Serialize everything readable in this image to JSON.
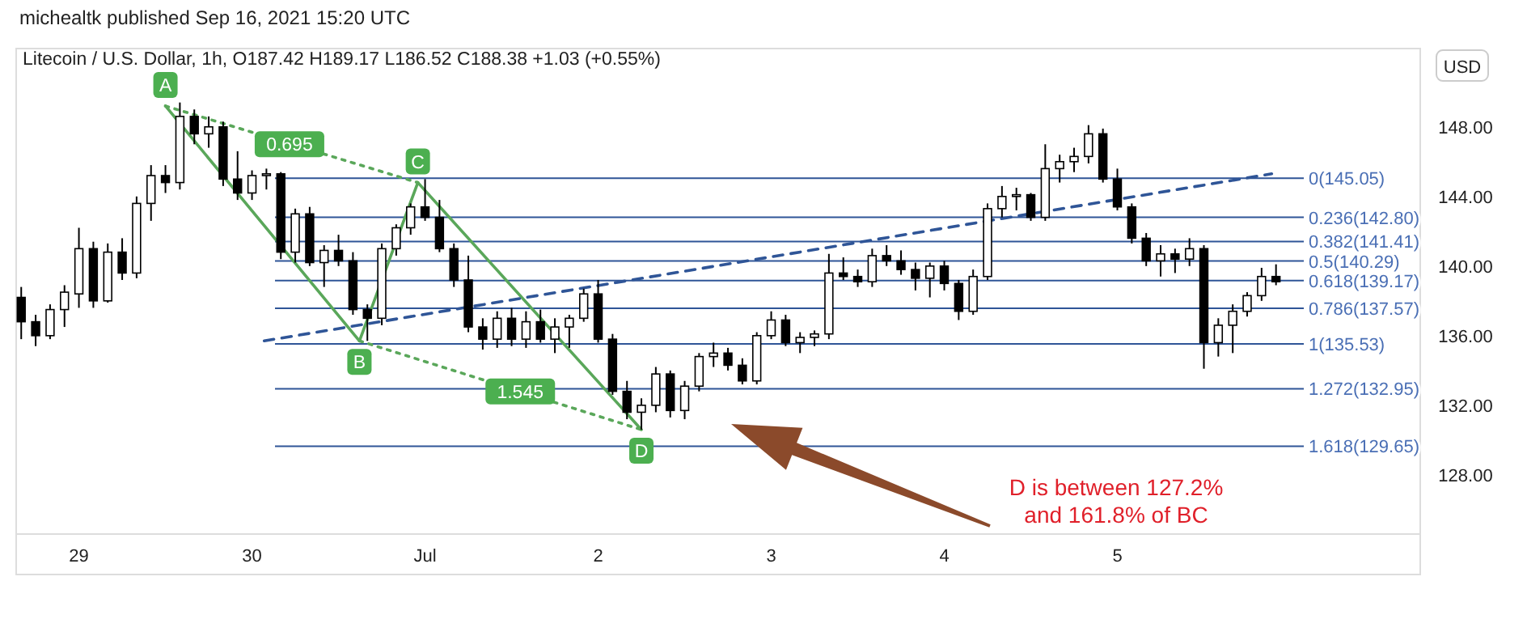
{
  "chart_data": {
    "type": "candlestick",
    "subtitle": "michealtk published Sep 16, 2021 15:20 UTC",
    "title": "Litecoin / U.S. Dollar, 1h, O187.42 H189.17 L186.52 C188.38 +1.03 (+0.55%)",
    "ylabel": "USD",
    "x": [
      "2021-06-28T16:00",
      "2021-06-28T18:00",
      "2021-06-28T20:00",
      "2021-06-28T22:00",
      "2021-06-29T00:00",
      "2021-06-29T02:00",
      "2021-06-29T04:00",
      "2021-06-29T06:00",
      "2021-06-29T08:00",
      "2021-06-29T10:00",
      "2021-06-29T12:00",
      "2021-06-29T14:00",
      "2021-06-29T16:00",
      "2021-06-29T18:00",
      "2021-06-29T20:00",
      "2021-06-29T22:00",
      "2021-06-30T00:00",
      "2021-06-30T02:00",
      "2021-06-30T04:00",
      "2021-06-30T06:00",
      "2021-06-30T08:00",
      "2021-06-30T10:00",
      "2021-06-30T12:00",
      "2021-06-30T14:00",
      "2021-06-30T16:00",
      "2021-06-30T18:00",
      "2021-06-30T20:00",
      "2021-06-30T22:00",
      "2021-07-01T00:00",
      "2021-07-01T02:00",
      "2021-07-01T04:00",
      "2021-07-01T06:00",
      "2021-07-01T08:00",
      "2021-07-01T10:00",
      "2021-07-01T12:00",
      "2021-07-01T14:00",
      "2021-07-01T16:00",
      "2021-07-01T18:00",
      "2021-07-01T20:00",
      "2021-07-01T22:00",
      "2021-07-02T00:00",
      "2021-07-02T02:00",
      "2021-07-02T04:00",
      "2021-07-02T06:00",
      "2021-07-02T08:00",
      "2021-07-02T10:00",
      "2021-07-02T12:00",
      "2021-07-02T14:00",
      "2021-07-02T16:00",
      "2021-07-02T18:00",
      "2021-07-02T20:00",
      "2021-07-02T22:00",
      "2021-07-03T00:00",
      "2021-07-03T02:00",
      "2021-07-03T04:00",
      "2021-07-03T06:00",
      "2021-07-03T08:00",
      "2021-07-03T10:00",
      "2021-07-03T12:00",
      "2021-07-03T14:00",
      "2021-07-03T16:00",
      "2021-07-03T18:00",
      "2021-07-03T20:00",
      "2021-07-03T22:00",
      "2021-07-04T00:00",
      "2021-07-04T02:00",
      "2021-07-04T04:00",
      "2021-07-04T06:00",
      "2021-07-04T08:00",
      "2021-07-04T10:00",
      "2021-07-04T12:00",
      "2021-07-04T14:00",
      "2021-07-04T16:00",
      "2021-07-04T18:00",
      "2021-07-04T20:00",
      "2021-07-04T22:00",
      "2021-07-05T00:00",
      "2021-07-05T02:00",
      "2021-07-05T04:00",
      "2021-07-05T06:00",
      "2021-07-05T08:00",
      "2021-07-05T10:00",
      "2021-07-05T12:00",
      "2021-07-05T14:00",
      "2021-07-05T16:00",
      "2021-07-05T18:00",
      "2021-07-05T20:00",
      "2021-07-05T22:00"
    ],
    "ohlc": [
      [
        138.2,
        138.8,
        135.8,
        136.8
      ],
      [
        136.8,
        137.2,
        135.4,
        136
      ],
      [
        136,
        137.8,
        135.8,
        137.5
      ],
      [
        137.5,
        138.9,
        136.5,
        138.5
      ],
      [
        138.4,
        142.2,
        137.6,
        141
      ],
      [
        141,
        141.4,
        137.6,
        138
      ],
      [
        138,
        141.3,
        137.9,
        140.8
      ],
      [
        140.8,
        141.6,
        139.2,
        139.6
      ],
      [
        139.6,
        144,
        139.3,
        143.6
      ],
      [
        143.6,
        145.8,
        142.6,
        145.2
      ],
      [
        145.2,
        145.8,
        144.2,
        144.8
      ],
      [
        144.8,
        149.4,
        144.4,
        148.6
      ],
      [
        148.6,
        149,
        147,
        147.6
      ],
      [
        147.6,
        148.6,
        146.8,
        148
      ],
      [
        148,
        148.3,
        144.6,
        145
      ],
      [
        145,
        146.6,
        143.8,
        144.2
      ],
      [
        144.2,
        145.5,
        143.8,
        145.2
      ],
      [
        145.2,
        145.6,
        144.4,
        145.3
      ],
      [
        145.3,
        145.4,
        140.4,
        140.8
      ],
      [
        140.8,
        143.3,
        140.2,
        143
      ],
      [
        143,
        143.4,
        140,
        140.2
      ],
      [
        140.2,
        141.2,
        138.8,
        140.9
      ],
      [
        140.9,
        141.8,
        140,
        140.3
      ],
      [
        140.3,
        140.8,
        137.2,
        137.5
      ],
      [
        137.5,
        137.8,
        135.7,
        137
      ],
      [
        137,
        141.3,
        136.6,
        141
      ],
      [
        141,
        142.4,
        140.6,
        142.2
      ],
      [
        142.2,
        143.6,
        141.8,
        143.4
      ],
      [
        143.4,
        145,
        142.6,
        142.8
      ],
      [
        142.8,
        143.8,
        140.8,
        141
      ],
      [
        141,
        141.3,
        138.8,
        139.2
      ],
      [
        139.2,
        140.6,
        136.2,
        136.5
      ],
      [
        136.5,
        137,
        135.2,
        135.8
      ],
      [
        135.8,
        137.4,
        135.3,
        137
      ],
      [
        137,
        137.6,
        135.4,
        135.8
      ],
      [
        135.8,
        137.4,
        135.3,
        136.8
      ],
      [
        136.8,
        137.5,
        135.6,
        135.8
      ],
      [
        135.8,
        137,
        135,
        136.5
      ],
      [
        136.5,
        137.2,
        135.3,
        137
      ],
      [
        137,
        138.7,
        136.8,
        138.4
      ],
      [
        138.4,
        139.2,
        135.6,
        135.8
      ],
      [
        135.8,
        136.1,
        132.6,
        132.8
      ],
      [
        132.8,
        133.4,
        131.2,
        131.6
      ],
      [
        131.6,
        132.4,
        130.6,
        132
      ],
      [
        132,
        134.2,
        131.6,
        133.8
      ],
      [
        133.8,
        134,
        131.3,
        131.7
      ],
      [
        131.7,
        133.4,
        131.2,
        133.1
      ],
      [
        133.1,
        135,
        132.8,
        134.8
      ],
      [
        134.8,
        135.6,
        134.2,
        135
      ],
      [
        135,
        135.3,
        134,
        134.3
      ],
      [
        134.3,
        134.7,
        133.2,
        133.4
      ],
      [
        133.4,
        136.2,
        133.2,
        136
      ],
      [
        136,
        137.4,
        135.8,
        136.9
      ],
      [
        136.9,
        137.2,
        135.4,
        135.6
      ],
      [
        135.6,
        136.2,
        135,
        135.9
      ],
      [
        135.9,
        136.3,
        135.4,
        136.1
      ],
      [
        136.1,
        140.7,
        135.8,
        139.6
      ],
      [
        139.6,
        140.5,
        139.2,
        139.4
      ],
      [
        139.4,
        139.8,
        138.8,
        139.1
      ],
      [
        139.1,
        141,
        138.8,
        140.6
      ],
      [
        140.6,
        141.2,
        140,
        140.3
      ],
      [
        140.3,
        140.9,
        139.5,
        139.8
      ],
      [
        139.8,
        140.2,
        138.6,
        139.3
      ],
      [
        139.3,
        140.2,
        138.2,
        140
      ],
      [
        140,
        140.3,
        138.6,
        139
      ],
      [
        139,
        139.2,
        136.9,
        137.4
      ],
      [
        137.4,
        139.8,
        137.2,
        139.4
      ],
      [
        139.4,
        143.6,
        139.2,
        143.3
      ],
      [
        143.3,
        144.6,
        142.8,
        144
      ],
      [
        144,
        144.5,
        143.2,
        144.1
      ],
      [
        144.1,
        144.2,
        142.6,
        142.8
      ],
      [
        142.8,
        147,
        142.6,
        145.6
      ],
      [
        145.6,
        146.4,
        144.8,
        146
      ],
      [
        146,
        146.8,
        145.4,
        146.3
      ],
      [
        146.3,
        148.1,
        145.9,
        147.6
      ],
      [
        147.6,
        147.9,
        144.8,
        145
      ],
      [
        145,
        145.6,
        143.2,
        143.4
      ],
      [
        143.4,
        143.6,
        141.3,
        141.6
      ],
      [
        141.6,
        141.9,
        140,
        140.3
      ],
      [
        140.3,
        141.2,
        139.4,
        140.7
      ],
      [
        140.7,
        141,
        139.6,
        140.4
      ],
      [
        140.4,
        141.6,
        140,
        141
      ],
      [
        141,
        141.2,
        134.1,
        135.6
      ],
      [
        135.6,
        137,
        134.8,
        136.6
      ],
      [
        136.6,
        137.8,
        135,
        137.4
      ],
      [
        137.4,
        138.5,
        137.1,
        138.3
      ],
      [
        138.3,
        139.9,
        138,
        139.4
      ],
      [
        139.4,
        140.1,
        138.9,
        139.1
      ]
    ],
    "xlim": [
      "2021-06-28T15:18",
      "2021-07-06T18:00"
    ],
    "ylim": [
      124.6,
      152.5
    ],
    "xticks": [
      {
        "value": "2021-06-29",
        "label": "29"
      },
      {
        "value": "2021-06-30",
        "label": "30"
      },
      {
        "value": "2021-07-01",
        "label": "Jul"
      },
      {
        "value": "2021-07-02",
        "label": "2"
      },
      {
        "value": "2021-07-03",
        "label": "3"
      },
      {
        "value": "2021-07-04",
        "label": "4"
      },
      {
        "value": "2021-07-05",
        "label": "5"
      }
    ],
    "yticks": [
      {
        "value": 128,
        "label": "128.00"
      },
      {
        "value": 132,
        "label": "132.00"
      },
      {
        "value": 136,
        "label": "136.00"
      },
      {
        "value": 140,
        "label": "140.00"
      },
      {
        "value": 144,
        "label": "144.00"
      },
      {
        "value": 148,
        "label": "148.00"
      }
    ],
    "grid": false,
    "ref_lines": [
      {
        "axis": "y",
        "value": 145.05,
        "label": "0(145.05)",
        "color": "#2f5597"
      },
      {
        "axis": "y",
        "value": 142.8,
        "label": "0.236(142.80)",
        "color": "#2f5597"
      },
      {
        "axis": "y",
        "value": 141.41,
        "label": "0.382(141.41)",
        "color": "#2f5597"
      },
      {
        "axis": "y",
        "value": 140.29,
        "label": "0.5(140.29)",
        "color": "#2f5597"
      },
      {
        "axis": "y",
        "value": 139.17,
        "label": "0.618(139.17)",
        "color": "#2f5597"
      },
      {
        "axis": "y",
        "value": 137.57,
        "label": "0.786(137.57)",
        "color": "#2f5597"
      },
      {
        "axis": "y",
        "value": 135.53,
        "label": "1(135.53)",
        "color": "#2f5597"
      },
      {
        "axis": "y",
        "value": 132.95,
        "label": "1.272(132.95)",
        "color": "#2f5597"
      },
      {
        "axis": "y",
        "value": 129.65,
        "label": "1.618(129.65)",
        "color": "#2f5597"
      }
    ],
    "series": [
      {
        "type": "line",
        "color": "#5aa75a",
        "line_style": "solid",
        "x": [
          "2021-06-29T12:00",
          "2021-06-30T14:54",
          "2021-06-30T23:00",
          "2021-07-02T06:00"
        ],
        "values": [
          149.2,
          135.7,
          144.8,
          130.6
        ]
      },
      {
        "type": "line",
        "color": "#5aa75a",
        "line_style": "dotted",
        "x": [
          "2021-06-29T12:00",
          "2021-06-30T23:00"
        ],
        "values": [
          149.2,
          144.8
        ]
      },
      {
        "type": "line",
        "color": "#5aa75a",
        "line_style": "dotted",
        "x": [
          "2021-06-30T14:54",
          "2021-07-02T06:00"
        ],
        "values": [
          135.7,
          130.6
        ]
      },
      {
        "type": "line",
        "color": "#2f5597",
        "line_style": "dashed",
        "x": [
          "2021-06-30T01:42",
          "2021-07-05T21:24"
        ],
        "values": [
          135.7,
          145.3
        ]
      }
    ],
    "annotations": [
      {
        "text": "A",
        "x": "2021-06-29T12:00",
        "y": 149.2
      },
      {
        "text": "0.695",
        "x": "2021-06-30T05:12",
        "y": 147
      },
      {
        "text": "C",
        "x": "2021-06-30T23:00",
        "y": 144.8
      },
      {
        "text": "B",
        "x": "2021-06-30T14:54",
        "y": 135.7
      },
      {
        "text": "1.545",
        "x": "2021-07-01T13:12",
        "y": 132.8
      },
      {
        "text": "D",
        "x": "2021-07-02T06:00",
        "y": 130.6
      },
      "D is between 127.2%\nand 161.8% of BC"
    ]
  }
}
